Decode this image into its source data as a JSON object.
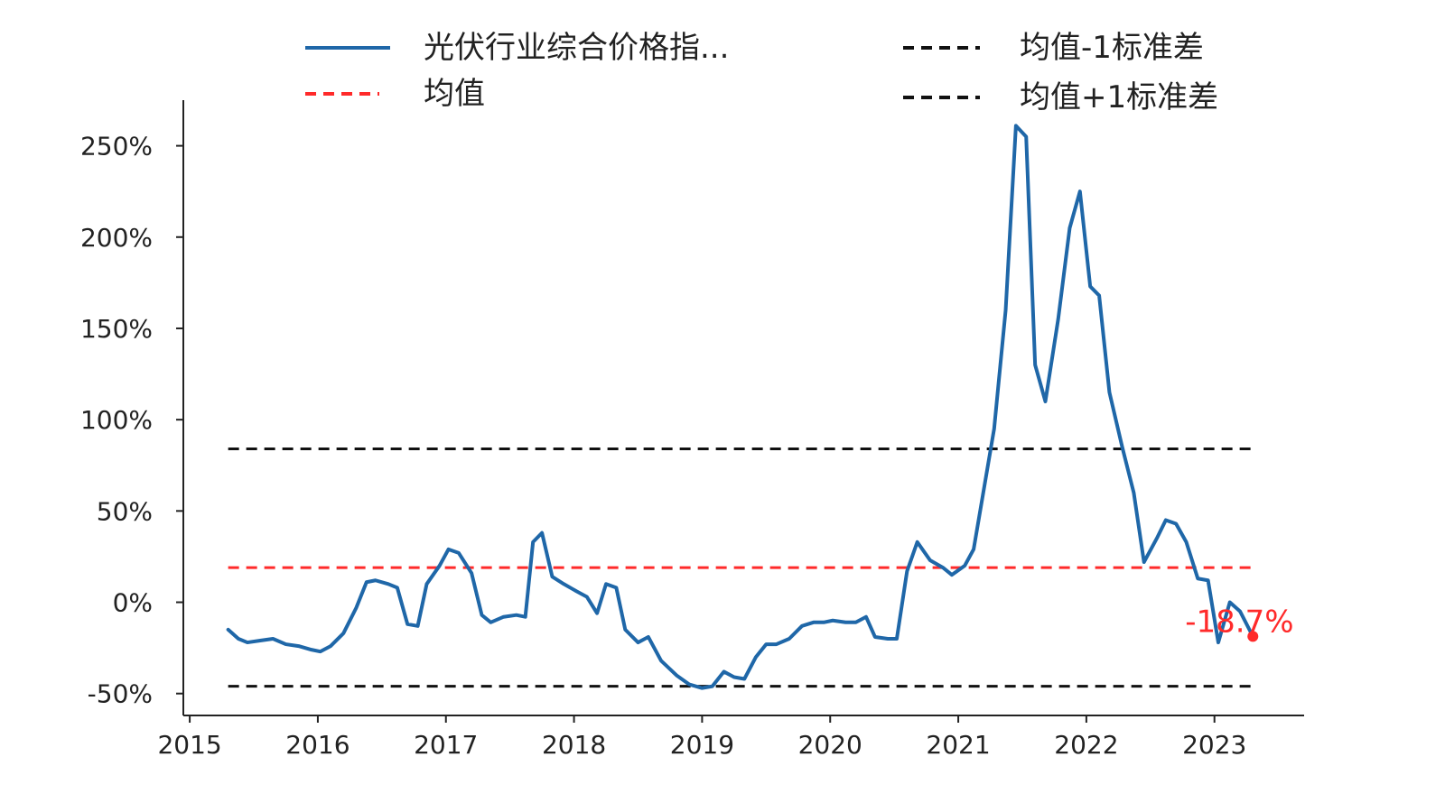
{
  "chart_data": {
    "type": "line",
    "title": "",
    "xlabel": "",
    "ylabel": "",
    "xlim": [
      2014.95,
      2023.7
    ],
    "ylim": [
      -62,
      275
    ],
    "x_ticks": [
      2015,
      2016,
      2017,
      2018,
      2019,
      2020,
      2021,
      2022,
      2023
    ],
    "x_tick_labels": [
      "2015",
      "2016",
      "2017",
      "2018",
      "2019",
      "2020",
      "2021",
      "2022",
      "2023"
    ],
    "y_ticks": [
      -50,
      0,
      50,
      100,
      150,
      200,
      250
    ],
    "y_tick_labels": [
      "-50%",
      "0%",
      "50%",
      "100%",
      "150%",
      "200%",
      "250%"
    ],
    "grid": false,
    "legend_position": "top",
    "legend": [
      {
        "label": "光伏行业综合价格指...",
        "color": "#1f67a8",
        "style": "solid"
      },
      {
        "label": "均值",
        "color": "#ff2a2a",
        "style": "dashed"
      },
      {
        "label": "均值-1标准差",
        "color": "#111111",
        "style": "dashed"
      },
      {
        "label": "均值+1标准差",
        "color": "#111111",
        "style": "dashed"
      }
    ],
    "series": [
      {
        "name": "光伏行业综合价格指...",
        "color": "#1f67a8",
        "points": [
          {
            "x": 2015.3,
            "y": -15
          },
          {
            "x": 2015.38,
            "y": -20
          },
          {
            "x": 2015.45,
            "y": -22
          },
          {
            "x": 2015.55,
            "y": -21
          },
          {
            "x": 2015.65,
            "y": -20
          },
          {
            "x": 2015.75,
            "y": -23
          },
          {
            "x": 2015.85,
            "y": -24
          },
          {
            "x": 2015.95,
            "y": -26
          },
          {
            "x": 2016.02,
            "y": -27
          },
          {
            "x": 2016.1,
            "y": -24
          },
          {
            "x": 2016.2,
            "y": -17
          },
          {
            "x": 2016.3,
            "y": -3
          },
          {
            "x": 2016.38,
            "y": 11
          },
          {
            "x": 2016.45,
            "y": 12
          },
          {
            "x": 2016.55,
            "y": 10
          },
          {
            "x": 2016.62,
            "y": 8
          },
          {
            "x": 2016.7,
            "y": -12
          },
          {
            "x": 2016.78,
            "y": -13
          },
          {
            "x": 2016.85,
            "y": 10
          },
          {
            "x": 2016.95,
            "y": 20
          },
          {
            "x": 2017.02,
            "y": 29
          },
          {
            "x": 2017.1,
            "y": 27
          },
          {
            "x": 2017.2,
            "y": 16
          },
          {
            "x": 2017.28,
            "y": -7
          },
          {
            "x": 2017.35,
            "y": -11
          },
          {
            "x": 2017.45,
            "y": -8
          },
          {
            "x": 2017.55,
            "y": -7
          },
          {
            "x": 2017.62,
            "y": -8
          },
          {
            "x": 2017.68,
            "y": 33
          },
          {
            "x": 2017.75,
            "y": 38
          },
          {
            "x": 2017.83,
            "y": 14
          },
          {
            "x": 2017.92,
            "y": 10
          },
          {
            "x": 2018.02,
            "y": 6
          },
          {
            "x": 2018.1,
            "y": 3
          },
          {
            "x": 2018.18,
            "y": -6
          },
          {
            "x": 2018.25,
            "y": 10
          },
          {
            "x": 2018.33,
            "y": 8
          },
          {
            "x": 2018.4,
            "y": -15
          },
          {
            "x": 2018.5,
            "y": -22
          },
          {
            "x": 2018.58,
            "y": -19
          },
          {
            "x": 2018.68,
            "y": -32
          },
          {
            "x": 2018.8,
            "y": -40
          },
          {
            "x": 2018.9,
            "y": -45
          },
          {
            "x": 2019.0,
            "y": -47
          },
          {
            "x": 2019.08,
            "y": -46
          },
          {
            "x": 2019.17,
            "y": -38
          },
          {
            "x": 2019.25,
            "y": -41
          },
          {
            "x": 2019.33,
            "y": -42
          },
          {
            "x": 2019.42,
            "y": -30
          },
          {
            "x": 2019.5,
            "y": -23
          },
          {
            "x": 2019.58,
            "y": -23
          },
          {
            "x": 2019.68,
            "y": -20
          },
          {
            "x": 2019.78,
            "y": -13
          },
          {
            "x": 2019.87,
            "y": -11
          },
          {
            "x": 2019.95,
            "y": -11
          },
          {
            "x": 2020.02,
            "y": -10
          },
          {
            "x": 2020.12,
            "y": -11
          },
          {
            "x": 2020.2,
            "y": -11
          },
          {
            "x": 2020.28,
            "y": -8
          },
          {
            "x": 2020.35,
            "y": -19
          },
          {
            "x": 2020.45,
            "y": -20
          },
          {
            "x": 2020.52,
            "y": -20
          },
          {
            "x": 2020.6,
            "y": 17
          },
          {
            "x": 2020.68,
            "y": 33
          },
          {
            "x": 2020.78,
            "y": 23
          },
          {
            "x": 2020.88,
            "y": 19
          },
          {
            "x": 2020.95,
            "y": 15
          },
          {
            "x": 2021.05,
            "y": 20
          },
          {
            "x": 2021.12,
            "y": 29
          },
          {
            "x": 2021.2,
            "y": 62
          },
          {
            "x": 2021.28,
            "y": 95
          },
          {
            "x": 2021.37,
            "y": 160
          },
          {
            "x": 2021.45,
            "y": 261
          },
          {
            "x": 2021.53,
            "y": 255
          },
          {
            "x": 2021.6,
            "y": 130
          },
          {
            "x": 2021.68,
            "y": 110
          },
          {
            "x": 2021.78,
            "y": 155
          },
          {
            "x": 2021.87,
            "y": 205
          },
          {
            "x": 2021.95,
            "y": 225
          },
          {
            "x": 2022.03,
            "y": 173
          },
          {
            "x": 2022.1,
            "y": 168
          },
          {
            "x": 2022.18,
            "y": 115
          },
          {
            "x": 2022.28,
            "y": 85
          },
          {
            "x": 2022.37,
            "y": 60
          },
          {
            "x": 2022.45,
            "y": 22
          },
          {
            "x": 2022.55,
            "y": 35
          },
          {
            "x": 2022.62,
            "y": 45
          },
          {
            "x": 2022.7,
            "y": 43
          },
          {
            "x": 2022.78,
            "y": 33
          },
          {
            "x": 2022.87,
            "y": 13
          },
          {
            "x": 2022.95,
            "y": 12
          },
          {
            "x": 2023.03,
            "y": -22
          },
          {
            "x": 2023.12,
            "y": 0
          },
          {
            "x": 2023.2,
            "y": -5
          },
          {
            "x": 2023.3,
            "y": -18.7
          }
        ]
      }
    ],
    "reference_lines": [
      {
        "name": "均值",
        "value": 19,
        "color": "#ff2a2a",
        "x_start": 2015.3,
        "x_end": 2023.3
      },
      {
        "name": "均值-1标准差",
        "value": -46,
        "color": "#111111",
        "x_start": 2015.3,
        "x_end": 2023.3
      },
      {
        "name": "均值+1标准差",
        "value": 84,
        "color": "#111111",
        "x_start": 2015.3,
        "x_end": 2023.3
      }
    ],
    "annotation": {
      "text": "-18.7%",
      "x": 2023.3,
      "y": -18.7,
      "color": "#ff2a2a"
    }
  }
}
